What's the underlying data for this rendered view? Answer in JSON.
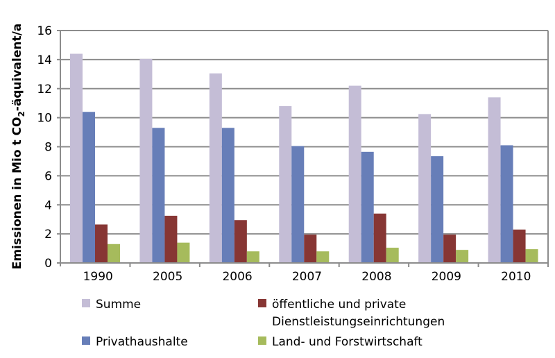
{
  "chart_data": {
    "type": "bar",
    "title": "",
    "xlabel": "",
    "ylabel_parts": [
      "Emissionen in Mio t CO",
      "2",
      "-äquivalent/a"
    ],
    "ylim": [
      0,
      16
    ],
    "yticks": [
      0,
      2,
      4,
      6,
      8,
      10,
      12,
      14,
      16
    ],
    "grid": true,
    "legend_position": "bottom",
    "categories": [
      "1990",
      "2005",
      "2006",
      "2007",
      "2008",
      "2009",
      "2010"
    ],
    "series": [
      {
        "name": "Summe",
        "color": "#c4bdd6",
        "values": [
          14.4,
          14.05,
          13.05,
          10.8,
          12.2,
          10.25,
          11.4
        ]
      },
      {
        "name": "Privathaushalte",
        "color": "#677eb8",
        "values": [
          10.4,
          9.3,
          9.3,
          8.05,
          7.65,
          7.35,
          8.1
        ]
      },
      {
        "name": "öffentliche und private Dienstleistungseinrichtungen",
        "label_lines": [
          "öffentliche und private",
          "Dienstleistungseinrichtungen"
        ],
        "color": "#873634",
        "values": [
          2.65,
          3.25,
          2.95,
          1.95,
          3.4,
          1.95,
          2.3
        ]
      },
      {
        "name": "Land- und Forstwirtschaft",
        "color": "#a6bb5c",
        "values": [
          1.3,
          1.4,
          0.8,
          0.8,
          1.05,
          0.9,
          0.95
        ]
      }
    ]
  }
}
